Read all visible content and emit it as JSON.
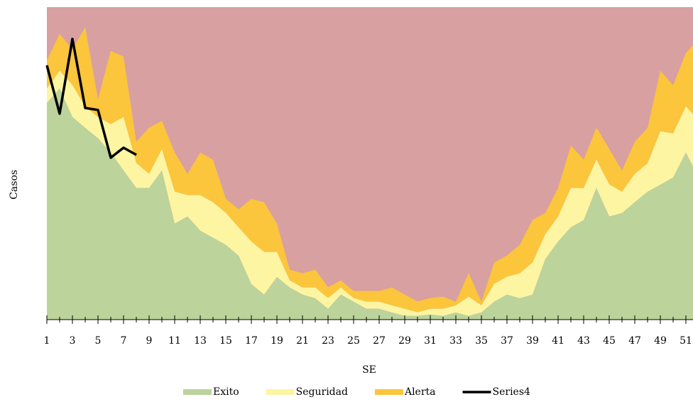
{
  "chart_data": {
    "type": "stacked_area",
    "xlabel": "SE",
    "ylabel": "Casos",
    "x": [
      1,
      2,
      3,
      4,
      5,
      6,
      7,
      8,
      9,
      10,
      11,
      12,
      13,
      14,
      15,
      16,
      17,
      18,
      19,
      20,
      21,
      22,
      23,
      24,
      25,
      26,
      27,
      28,
      29,
      30,
      31,
      32,
      33,
      34,
      35,
      36,
      37,
      38,
      39,
      40,
      41,
      42,
      43,
      44,
      45,
      46,
      47,
      48,
      49,
      50,
      51,
      52
    ],
    "xlim": [
      1,
      52
    ],
    "xticks": [
      1,
      3,
      5,
      7,
      9,
      11,
      13,
      15,
      17,
      19,
      21,
      23,
      25,
      27,
      29,
      31,
      33,
      35,
      37,
      39,
      41,
      43,
      45,
      47,
      49,
      51
    ],
    "ylim": [
      0,
      110
    ],
    "series": [
      {
        "name": "Exito",
        "color": "#bcd39b",
        "kind": "area",
        "values": [
          76.3,
          81.3,
          71.3,
          67.5,
          63.8,
          58.8,
          52.5,
          46.3,
          46.3,
          52.5,
          33.8,
          36.3,
          31.3,
          28.8,
          26.3,
          22.5,
          12.5,
          8.8,
          15,
          11.3,
          8.8,
          7.5,
          3.8,
          8.8,
          6.3,
          3.8,
          3.8,
          2.5,
          1.3,
          1.3,
          1.8,
          1.3,
          2.5,
          1.3,
          2.5,
          6.3,
          8.8,
          7.5,
          8.8,
          21.3,
          27.5,
          32.5,
          35,
          46.3,
          36.3,
          37.5,
          41.3,
          45,
          47.5,
          50,
          58.8,
          50
        ]
      },
      {
        "name": "Seguridad",
        "color": "#fdf5a2",
        "kind": "area",
        "values": [
          5,
          6.3,
          11.3,
          7.5,
          7.5,
          10,
          18.8,
          8.8,
          5,
          7.5,
          11.3,
          7.5,
          12.5,
          12.5,
          11.3,
          10,
          15,
          15,
          8.8,
          2.5,
          2.5,
          3.8,
          3.8,
          2.5,
          1.3,
          2.5,
          2.5,
          2.5,
          2.5,
          1.3,
          2,
          2.5,
          2.5,
          6.8,
          2.5,
          6.3,
          6.3,
          8.8,
          11.3,
          8.8,
          8.8,
          13.8,
          11.3,
          10,
          11.3,
          7.5,
          10,
          10,
          18.8,
          15.5,
          16.3,
          20
        ]
      },
      {
        "name": "Alerta",
        "color": "#fbc53c",
        "kind": "area",
        "values": [
          10,
          13,
          12.5,
          28,
          6.3,
          25.8,
          21.3,
          7.5,
          16.3,
          10,
          13.8,
          7.5,
          15,
          15,
          5,
          6.3,
          15,
          17.5,
          10,
          3.8,
          5,
          6.3,
          3.8,
          2.5,
          2.5,
          3.8,
          3.8,
          6.3,
          5,
          3.8,
          3.8,
          4.3,
          1.3,
          8.3,
          1.3,
          7.5,
          7.5,
          10,
          15,
          7.5,
          10,
          15,
          10,
          11.3,
          12.5,
          7.5,
          11.3,
          12.5,
          21.3,
          17,
          18.8,
          28.8
        ]
      },
      {
        "name": "Series4",
        "color": "#000000",
        "kind": "line",
        "values": [
          89.5,
          72.5,
          98.8,
          74.5,
          73.8,
          57,
          60.5,
          58,
          null,
          null,
          null,
          null,
          null,
          null,
          null,
          null,
          null,
          null,
          null,
          null,
          null,
          null,
          null,
          null,
          null,
          null,
          null,
          null,
          null,
          null,
          null,
          null,
          null,
          null,
          null,
          null,
          null,
          null,
          null,
          null,
          null,
          null,
          null,
          null,
          null,
          null,
          null,
          null,
          null,
          null,
          null,
          null
        ]
      }
    ]
  }
}
